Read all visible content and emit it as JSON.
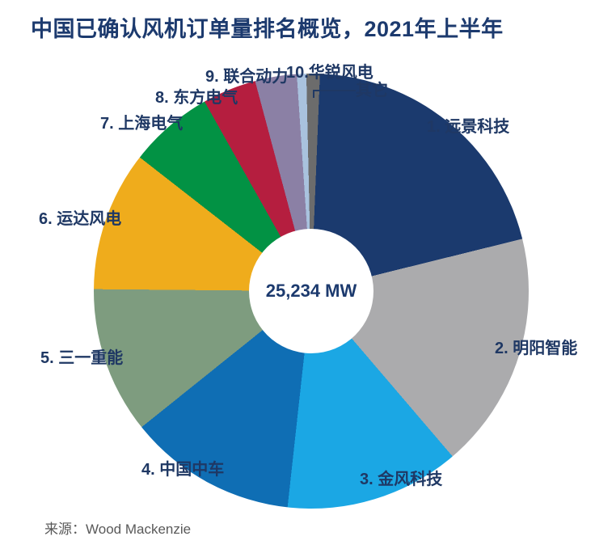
{
  "title": "中国已确认风机订单量排名概览，2021年上半年",
  "source": {
    "label": "来源：Wood Mackenzie"
  },
  "chart_data": {
    "type": "pie",
    "subtype": "donut",
    "title": "中国已确认风机订单量排名概览，2021年上半年",
    "center_label": "25,234 MW",
    "total_mw": 25234,
    "unit": "MW",
    "direction": "clockwise",
    "start_angle_deg": 2.3,
    "legend_position": "labels-around-slices",
    "segments": [
      {
        "rank": 1,
        "label": "1. 远景科技",
        "name": "远景科技",
        "share_pct": 20.5,
        "est_mw": 5170,
        "color": "#1B3A6E"
      },
      {
        "rank": 2,
        "label": "2. 明阳智能",
        "name": "明阳智能",
        "share_pct": 17.6,
        "est_mw": 4440,
        "color": "#ABABAD"
      },
      {
        "rank": 3,
        "label": "3. 金风科技",
        "name": "金风科技",
        "share_pct": 13.0,
        "est_mw": 3280,
        "color": "#1BA7E4"
      },
      {
        "rank": 4,
        "label": "4. 中国中车",
        "name": "中国中车",
        "share_pct": 12.5,
        "est_mw": 3155,
        "color": "#0F6EB4"
      },
      {
        "rank": 5,
        "label": "5. 三一重能",
        "name": "三一重能",
        "share_pct": 10.9,
        "est_mw": 2750,
        "color": "#7E9C7F"
      },
      {
        "rank": 6,
        "label": "6. 运达风电",
        "name": "运达风电",
        "share_pct": 10.4,
        "est_mw": 2625,
        "color": "#EFAC1C"
      },
      {
        "rank": 7,
        "label": "7. 上海电气",
        "name": "上海电气",
        "share_pct": 6.3,
        "est_mw": 1590,
        "color": "#029244"
      },
      {
        "rank": 8,
        "label": "8. 东方电气",
        "name": "东方电气",
        "share_pct": 4.0,
        "est_mw": 1010,
        "color": "#B51E3F"
      },
      {
        "rank": 9,
        "label": "9. 联合动力",
        "name": "联合动力",
        "share_pct": 3.1,
        "est_mw": 780,
        "color": "#8B80A5"
      },
      {
        "rank": 10,
        "label": "10.华锐风电",
        "name": "华锐风电",
        "share_pct": 0.7,
        "est_mw": 175,
        "color": "#A9C2DE"
      },
      {
        "rank": 11,
        "label": "其它",
        "name": "其它",
        "share_pct": 1.0,
        "est_mw": 250,
        "color": "#6C6C6C"
      }
    ]
  }
}
